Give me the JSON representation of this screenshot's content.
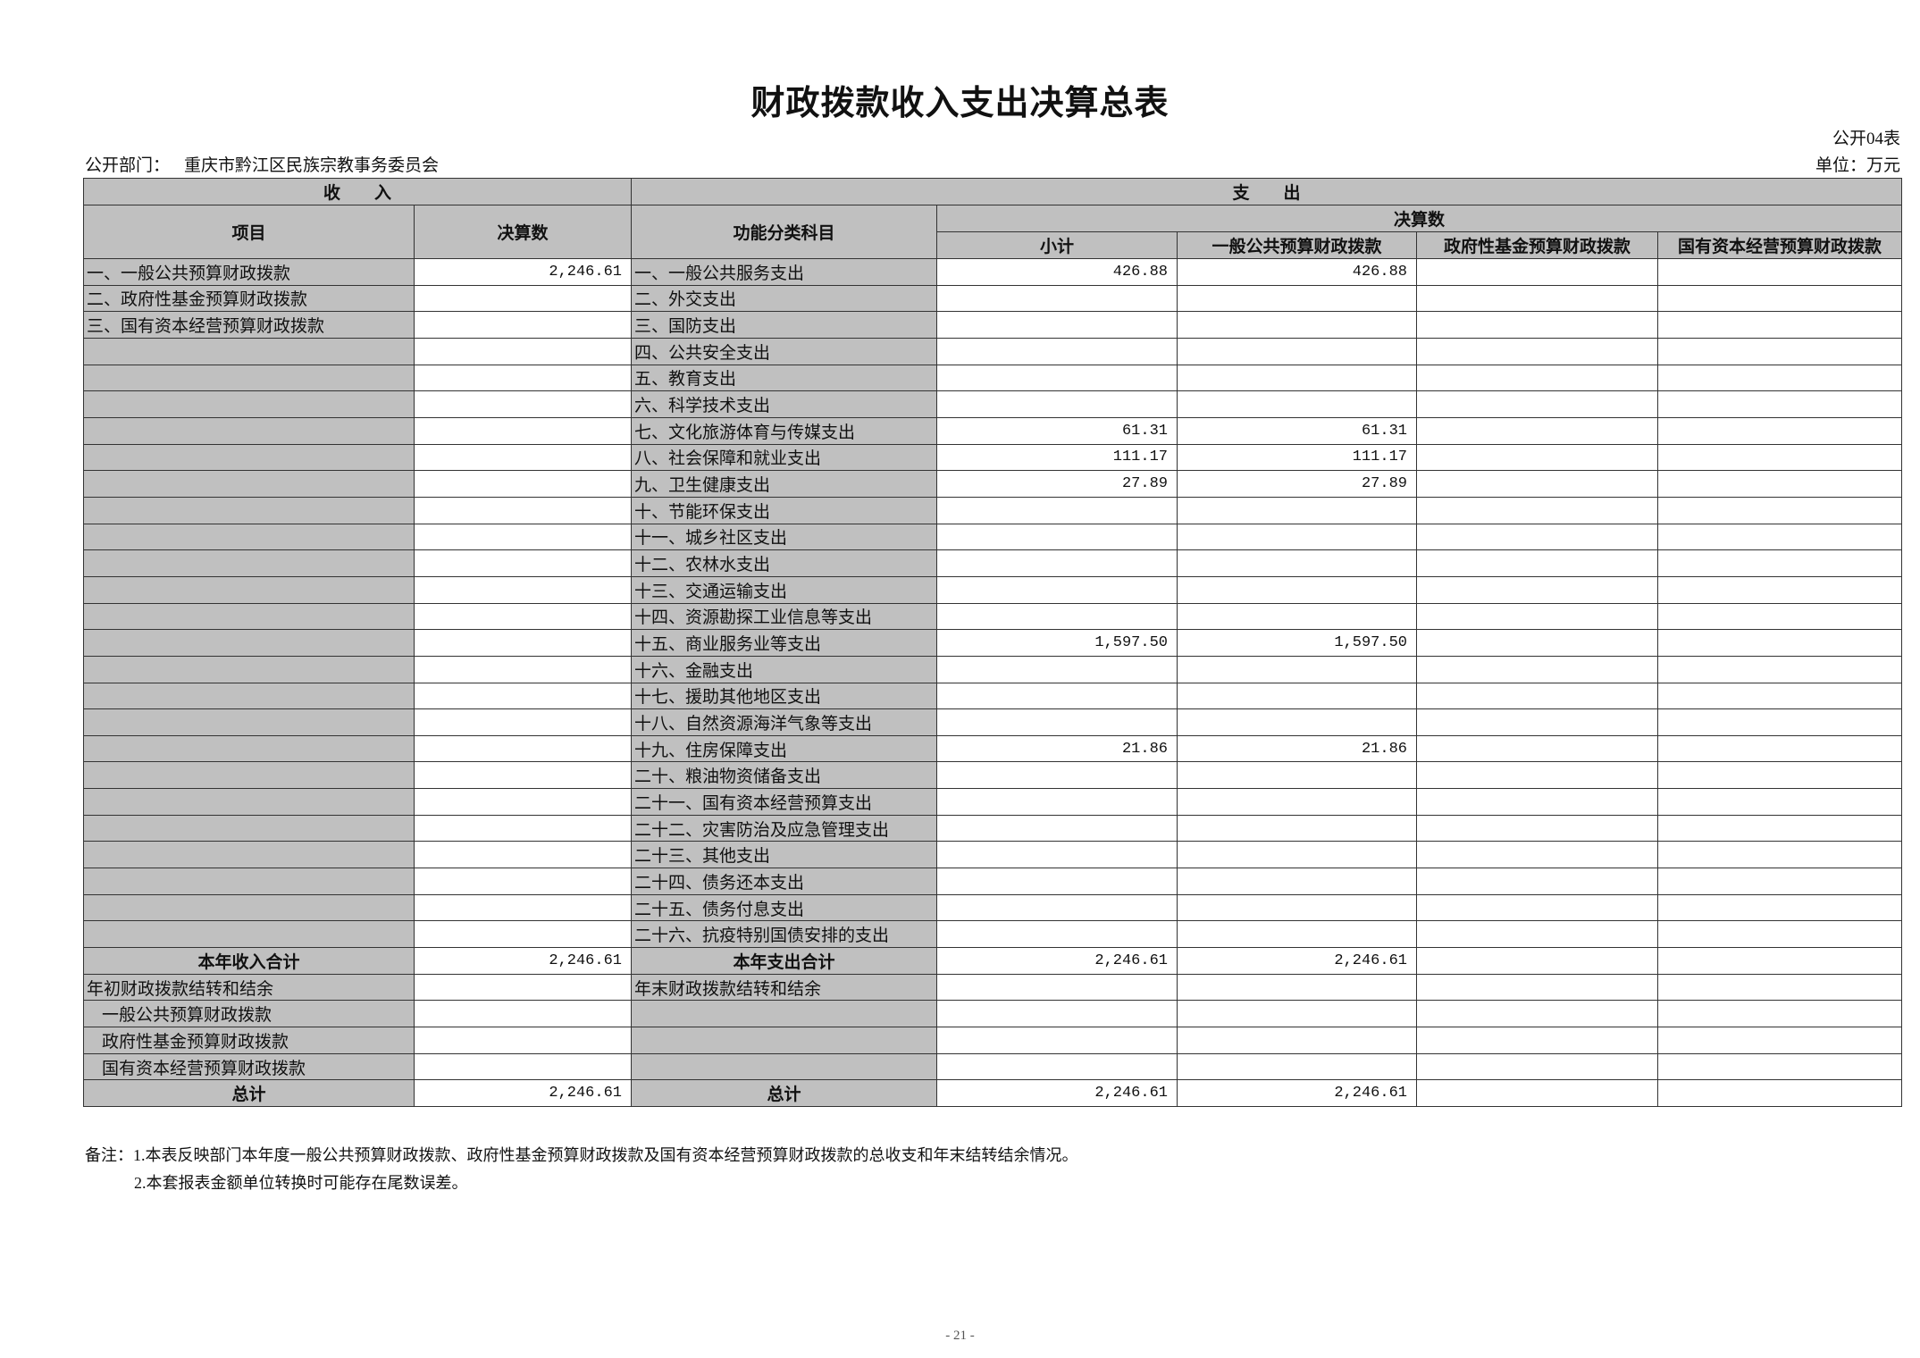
{
  "title": "财政拨款收入支出决算总表",
  "form_no": "公开04表",
  "department_label": "公开部门：",
  "department": "重庆市黔江区民族宗教事务委员会",
  "unit": "单位：万元",
  "header": {
    "income": "收　　入",
    "expense": "支　　出",
    "item": "项目",
    "amount": "决算数",
    "function_subject": "功能分类科目",
    "final_amount": "决算数",
    "subtotal": "小计",
    "general": "一般公共预算财政拨款",
    "gov_fund": "政府性基金预算财政拨款",
    "state_capital": "国有资本经营预算财政拨款"
  },
  "rows": [
    {
      "income_item": "一、一般公共预算财政拨款",
      "income_amount": "2,246.61",
      "subject": "一、一般公共服务支出",
      "subtotal": "426.88",
      "general": "426.88",
      "gov_fund": "",
      "state_capital": ""
    },
    {
      "income_item": "二、政府性基金预算财政拨款",
      "income_amount": "",
      "subject": "二、外交支出",
      "subtotal": "",
      "general": "",
      "gov_fund": "",
      "state_capital": ""
    },
    {
      "income_item": "三、国有资本经营预算财政拨款",
      "income_amount": "",
      "subject": "三、国防支出",
      "subtotal": "",
      "general": "",
      "gov_fund": "",
      "state_capital": ""
    },
    {
      "income_item": "",
      "income_amount": "",
      "subject": "四、公共安全支出",
      "subtotal": "",
      "general": "",
      "gov_fund": "",
      "state_capital": ""
    },
    {
      "income_item": "",
      "income_amount": "",
      "subject": "五、教育支出",
      "subtotal": "",
      "general": "",
      "gov_fund": "",
      "state_capital": ""
    },
    {
      "income_item": "",
      "income_amount": "",
      "subject": "六、科学技术支出",
      "subtotal": "",
      "general": "",
      "gov_fund": "",
      "state_capital": ""
    },
    {
      "income_item": "",
      "income_amount": "",
      "subject": "七、文化旅游体育与传媒支出",
      "subtotal": "61.31",
      "general": "61.31",
      "gov_fund": "",
      "state_capital": ""
    },
    {
      "income_item": "",
      "income_amount": "",
      "subject": "八、社会保障和就业支出",
      "subtotal": "111.17",
      "general": "111.17",
      "gov_fund": "",
      "state_capital": ""
    },
    {
      "income_item": "",
      "income_amount": "",
      "subject": "九、卫生健康支出",
      "subtotal": "27.89",
      "general": "27.89",
      "gov_fund": "",
      "state_capital": ""
    },
    {
      "income_item": "",
      "income_amount": "",
      "subject": "十、节能环保支出",
      "subtotal": "",
      "general": "",
      "gov_fund": "",
      "state_capital": ""
    },
    {
      "income_item": "",
      "income_amount": "",
      "subject": "十一、城乡社区支出",
      "subtotal": "",
      "general": "",
      "gov_fund": "",
      "state_capital": ""
    },
    {
      "income_item": "",
      "income_amount": "",
      "subject": "十二、农林水支出",
      "subtotal": "",
      "general": "",
      "gov_fund": "",
      "state_capital": ""
    },
    {
      "income_item": "",
      "income_amount": "",
      "subject": "十三、交通运输支出",
      "subtotal": "",
      "general": "",
      "gov_fund": "",
      "state_capital": ""
    },
    {
      "income_item": "",
      "income_amount": "",
      "subject": "十四、资源勘探工业信息等支出",
      "subtotal": "",
      "general": "",
      "gov_fund": "",
      "state_capital": ""
    },
    {
      "income_item": "",
      "income_amount": "",
      "subject": "十五、商业服务业等支出",
      "subtotal": "1,597.50",
      "general": "1,597.50",
      "gov_fund": "",
      "state_capital": ""
    },
    {
      "income_item": "",
      "income_amount": "",
      "subject": "十六、金融支出",
      "subtotal": "",
      "general": "",
      "gov_fund": "",
      "state_capital": ""
    },
    {
      "income_item": "",
      "income_amount": "",
      "subject": "十七、援助其他地区支出",
      "subtotal": "",
      "general": "",
      "gov_fund": "",
      "state_capital": ""
    },
    {
      "income_item": "",
      "income_amount": "",
      "subject": "十八、自然资源海洋气象等支出",
      "subtotal": "",
      "general": "",
      "gov_fund": "",
      "state_capital": ""
    },
    {
      "income_item": "",
      "income_amount": "",
      "subject": "十九、住房保障支出",
      "subtotal": "21.86",
      "general": "21.86",
      "gov_fund": "",
      "state_capital": ""
    },
    {
      "income_item": "",
      "income_amount": "",
      "subject": "二十、粮油物资储备支出",
      "subtotal": "",
      "general": "",
      "gov_fund": "",
      "state_capital": ""
    },
    {
      "income_item": "",
      "income_amount": "",
      "subject": "二十一、国有资本经营预算支出",
      "subtotal": "",
      "general": "",
      "gov_fund": "",
      "state_capital": ""
    },
    {
      "income_item": "",
      "income_amount": "",
      "subject": "二十二、灾害防治及应急管理支出",
      "subtotal": "",
      "general": "",
      "gov_fund": "",
      "state_capital": ""
    },
    {
      "income_item": "",
      "income_amount": "",
      "subject": "二十三、其他支出",
      "subtotal": "",
      "general": "",
      "gov_fund": "",
      "state_capital": ""
    },
    {
      "income_item": "",
      "income_amount": "",
      "subject": "二十四、债务还本支出",
      "subtotal": "",
      "general": "",
      "gov_fund": "",
      "state_capital": ""
    },
    {
      "income_item": "",
      "income_amount": "",
      "subject": "二十五、债务付息支出",
      "subtotal": "",
      "general": "",
      "gov_fund": "",
      "state_capital": ""
    },
    {
      "income_item": "",
      "income_amount": "",
      "subject": "二十六、抗疫特别国债安排的支出",
      "subtotal": "",
      "general": "",
      "gov_fund": "",
      "state_capital": ""
    },
    {
      "income_item": "本年收入合计",
      "income_amount": "2,246.61",
      "subject": "本年支出合计",
      "subtotal": "2,246.61",
      "general": "2,246.61",
      "gov_fund": "",
      "state_capital": "",
      "style": "total"
    },
    {
      "income_item": "年初财政拨款结转和结余",
      "income_amount": "",
      "subject": "年末财政拨款结转和结余",
      "subtotal": "",
      "general": "",
      "gov_fund": "",
      "state_capital": ""
    },
    {
      "income_item": "一般公共预算财政拨款",
      "income_amount": "",
      "subject": "",
      "subtotal": "",
      "general": "",
      "gov_fund": "",
      "state_capital": "",
      "style": "indent"
    },
    {
      "income_item": "政府性基金预算财政拨款",
      "income_amount": "",
      "subject": "",
      "subtotal": "",
      "general": "",
      "gov_fund": "",
      "state_capital": "",
      "style": "indent"
    },
    {
      "income_item": "国有资本经营预算财政拨款",
      "income_amount": "",
      "subject": "",
      "subtotal": "",
      "general": "",
      "gov_fund": "",
      "state_capital": "",
      "style": "indent"
    },
    {
      "income_item": "总计",
      "income_amount": "2,246.61",
      "subject": "总计",
      "subtotal": "2,246.61",
      "general": "2,246.61",
      "gov_fund": "",
      "state_capital": "",
      "style": "total"
    }
  ],
  "notes": [
    "备注：1.本表反映部门本年度一般公共预算财政拨款、政府性基金预算财政拨款及国有资本经营预算财政拨款的总收支和年末结转结余情况。",
    "2.本套报表金额单位转换时可能存在尾数误差。"
  ],
  "page_number": "- 21 -",
  "colors": {
    "header_fill": "#c0c0c0",
    "border": "#333333"
  }
}
